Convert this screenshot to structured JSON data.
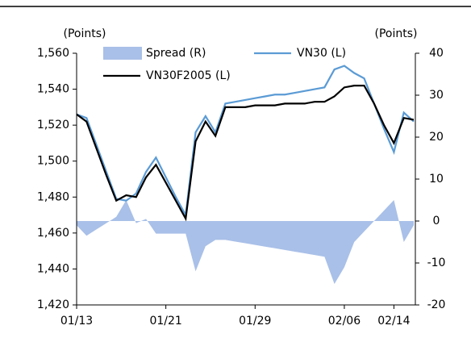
{
  "chart_data": {
    "type": "line",
    "y_label": "(Points)",
    "y2_label": "(Points)",
    "categories": [
      "01/13",
      null,
      null,
      null,
      null,
      null,
      null,
      null,
      null,
      "01/21",
      null,
      null,
      null,
      null,
      null,
      null,
      null,
      null,
      "01/29",
      null,
      null,
      null,
      null,
      null,
      null,
      null,
      null,
      "02/06",
      null,
      null,
      null,
      null,
      "02/14",
      null,
      null
    ],
    "series": [
      {
        "name": "Spread (R)",
        "kind": "area",
        "axis": "y2",
        "color": "#a9c0e8",
        "values": [
          -1,
          -3.5,
          -2,
          -0.5,
          1,
          5,
          -0.5,
          0.5,
          -3,
          -3,
          -3,
          -3,
          -12,
          -6,
          -4.5,
          -4.5,
          -4.9,
          -5.3,
          -5.7,
          -6.1,
          -6.5,
          -6.9,
          -7.3,
          -7.7,
          -8.1,
          -8.5,
          -15,
          -11,
          -5,
          -2.5,
          0,
          2.5,
          5,
          -5,
          -1
        ]
      },
      {
        "name": "VN30 (L)",
        "kind": "line",
        "axis": "y",
        "color": "#5b9bd5",
        "values": [
          1526,
          1524,
          1509,
          1494,
          1479,
          1478,
          1482,
          1494,
          1502,
          1491,
          1480,
          1470,
          1516,
          1525,
          1516,
          1532,
          1533,
          1534,
          1535,
          1536,
          1537,
          1537,
          1538,
          1539,
          1540,
          1541,
          1551,
          1553,
          1549,
          1546,
          1532,
          1518,
          1505,
          1527,
          1522
        ]
      },
      {
        "name": "VN30F2005 (L)",
        "kind": "line",
        "axis": "y",
        "color": "#000000",
        "values": [
          1526,
          1522,
          1507,
          1492,
          1478,
          1481,
          1480,
          1491,
          1498,
          1488,
          1478,
          1468,
          1511,
          1522,
          1514,
          1530,
          1530,
          1530,
          1531,
          1531,
          1531,
          1532,
          1532,
          1532,
          1533,
          1533,
          1536,
          1541,
          1542,
          1542,
          1532,
          1520,
          1510,
          1524,
          1523
        ]
      }
    ],
    "ylim": [
      1420,
      1560
    ],
    "yticks": [
      {
        "value": 1420,
        "label": "1,420"
      },
      {
        "value": 1440,
        "label": "1,440"
      },
      {
        "value": 1460,
        "label": "1,460"
      },
      {
        "value": 1480,
        "label": "1,480"
      },
      {
        "value": 1500,
        "label": "1,500"
      },
      {
        "value": 1520,
        "label": "1,520"
      },
      {
        "value": 1540,
        "label": "1,540"
      },
      {
        "value": 1560,
        "label": "1,560"
      }
    ],
    "y2lim": [
      -20,
      40
    ],
    "y2ticks": [
      -20,
      -10,
      0,
      10,
      20,
      30,
      40
    ],
    "grid": false,
    "legend": "top"
  }
}
